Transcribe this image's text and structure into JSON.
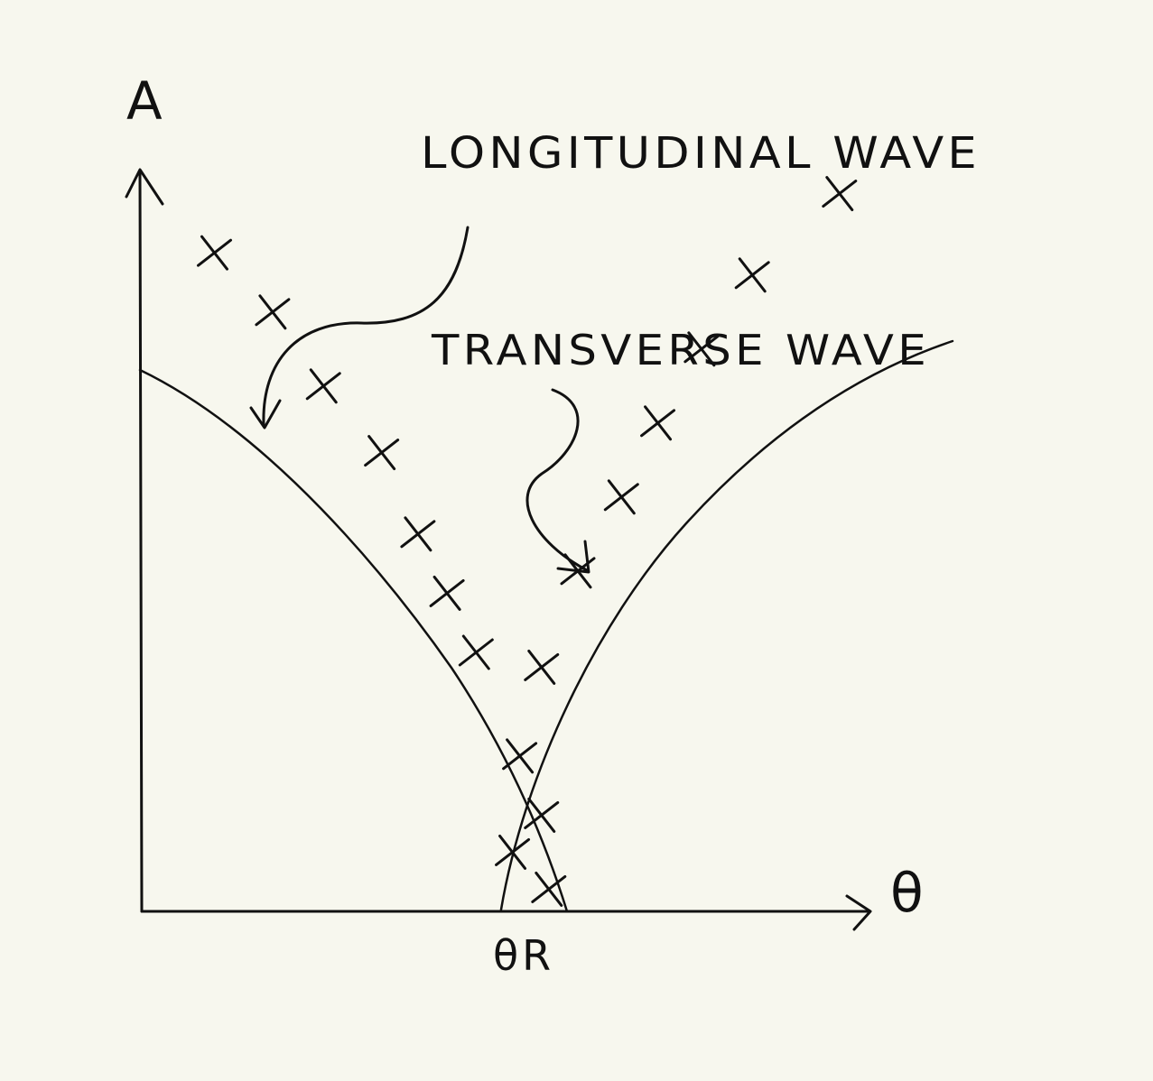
{
  "chart_data": {
    "type": "scatter",
    "title": "",
    "xlabel": "θ",
    "ylabel": "A",
    "x_tick_label": "θR",
    "xlim": [
      0,
      1
    ],
    "ylim": [
      0,
      1
    ],
    "grid": false,
    "legend": "none",
    "annotations": [
      "LONGITUDINAL WAVE",
      "TRANSVERSE WAVE"
    ],
    "series": [
      {
        "name": "LONGITUDINAL WAVE",
        "x": [
          0.1,
          0.18,
          0.25,
          0.33,
          0.38,
          0.42,
          0.46,
          0.52,
          0.55,
          0.56
        ],
        "y": [
          0.89,
          0.81,
          0.71,
          0.62,
          0.51,
          0.43,
          0.35,
          0.21,
          0.13,
          0.03
        ]
      },
      {
        "name": "TRANSVERSE WAVE",
        "x": [
          0.51,
          0.55,
          0.6,
          0.66,
          0.71,
          0.77,
          0.84,
          0.96
        ],
        "y": [
          0.08,
          0.33,
          0.46,
          0.56,
          0.66,
          0.76,
          0.86,
          0.97
        ]
      }
    ],
    "colors": {
      "background": "#f7f7ee",
      "ink": "#111111"
    }
  }
}
